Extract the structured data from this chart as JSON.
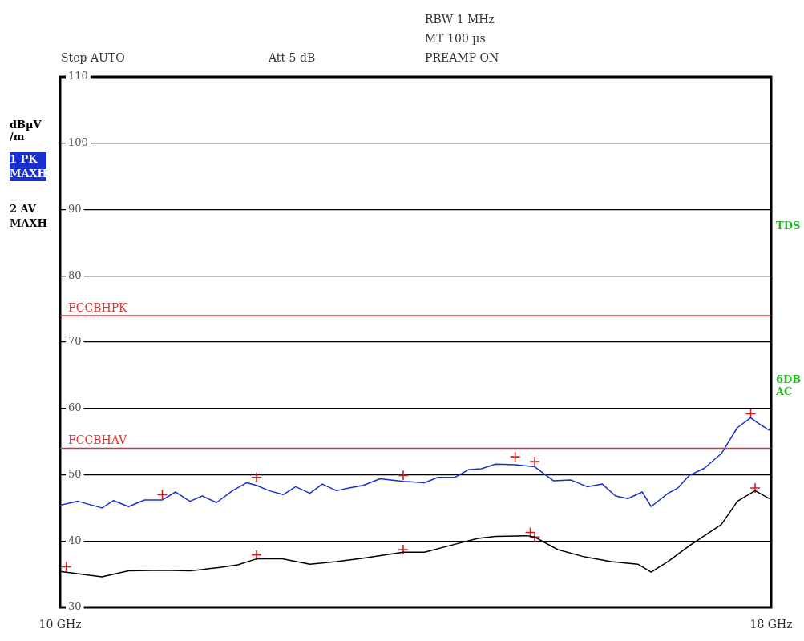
{
  "chart_data": {
    "type": "line",
    "ylabel": "dBµV /m",
    "xlim": [
      10,
      18
    ],
    "xticks": [
      {
        "value": 10,
        "label": "10 GHz"
      },
      {
        "value": 18,
        "label": "18 GHz"
      }
    ],
    "ylim": [
      30,
      110
    ],
    "yticks": [
      30,
      40,
      50,
      60,
      70,
      80,
      90,
      100,
      110
    ],
    "grid": "y",
    "legend": "left",
    "line_style": "solid",
    "marker": "none",
    "series": [
      {
        "name": "1 PK MAXH",
        "color": "#1a2fd0",
        "x": [
          10.0,
          10.2,
          10.47,
          10.6,
          10.77,
          10.95,
          11.15,
          11.3,
          11.46,
          11.6,
          11.76,
          11.94,
          12.1,
          12.21,
          12.35,
          12.51,
          12.65,
          12.81,
          12.95,
          13.11,
          13.25,
          13.41,
          13.6,
          13.86,
          14.1,
          14.25,
          14.44,
          14.6,
          14.74,
          14.9,
          15.12,
          15.34,
          15.55,
          15.75,
          15.93,
          16.1,
          16.25,
          16.39,
          16.55,
          16.65,
          16.84,
          16.95,
          17.08,
          17.25,
          17.44,
          17.62,
          17.77,
          17.85,
          17.98
        ],
        "values": [
          45.4,
          46.0,
          45.0,
          46.1,
          45.2,
          46.2,
          46.2,
          47.4,
          46.0,
          46.8,
          45.8,
          47.6,
          48.8,
          48.4,
          47.6,
          47.0,
          48.2,
          47.2,
          48.6,
          47.6,
          48.0,
          48.4,
          49.4,
          49.0,
          48.8,
          49.6,
          49.6,
          50.8,
          50.9,
          51.6,
          51.5,
          51.2,
          49.1,
          49.2,
          48.2,
          48.6,
          46.8,
          46.4,
          47.4,
          45.2,
          47.2,
          48.0,
          49.9,
          51.0,
          53.2,
          57.1,
          58.6,
          57.8,
          56.7
        ]
      },
      {
        "name": "2 AV MAXH",
        "color": "#000000",
        "x": [
          10.0,
          10.47,
          10.77,
          11.15,
          11.46,
          11.8,
          12.0,
          12.21,
          12.5,
          12.81,
          13.11,
          13.41,
          13.86,
          14.1,
          14.44,
          14.7,
          14.9,
          15.25,
          15.34,
          15.6,
          15.9,
          16.2,
          16.5,
          16.65,
          16.84,
          17.08,
          17.44,
          17.62,
          17.82,
          17.98
        ],
        "values": [
          35.4,
          34.6,
          35.5,
          35.6,
          35.5,
          36.0,
          36.4,
          37.3,
          37.3,
          36.5,
          36.9,
          37.4,
          38.3,
          38.3,
          39.5,
          40.4,
          40.7,
          40.8,
          40.6,
          38.7,
          37.6,
          36.9,
          36.5,
          35.3,
          36.9,
          39.3,
          42.5,
          46.0,
          47.6,
          46.4
        ]
      },
      {
        "type": "scatter",
        "color": "#cc2222",
        "marker": "cross",
        "x": [
          11.15,
          12.21,
          13.86,
          15.12,
          15.34,
          17.77
        ],
        "values": [
          47.0,
          49.6,
          49.9,
          52.7,
          52.0,
          59.2
        ]
      },
      {
        "type": "scatter",
        "color": "#cc2222",
        "marker": "cross",
        "x": [
          10.07,
          12.21,
          13.86,
          15.29,
          15.34,
          17.82
        ],
        "values": [
          36.1,
          37.9,
          38.7,
          41.3,
          40.6,
          48.0
        ]
      }
    ],
    "ref_lines": [
      {
        "axis": "y",
        "value": 74,
        "label": "FCCBHPK",
        "color": "#e03030"
      },
      {
        "axis": "y",
        "value": 54,
        "label": "FCCBHAV",
        "color": "#e03030"
      }
    ],
    "annotations": [
      "Step AUTO",
      "Att 5 dB",
      "RBW 1 MHz",
      "MT 100 µs",
      "PREAMP ON",
      "TDS",
      "6DB AC"
    ]
  }
}
